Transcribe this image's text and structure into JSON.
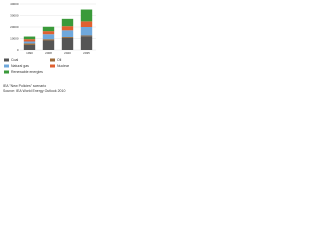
{
  "chart_data": {
    "type": "stacked_bar",
    "categories": [
      "1990",
      "2008",
      "2020",
      "2035"
    ],
    "series": [
      {
        "name": "Coal",
        "color": "#555555",
        "values": [
          4400,
          8300,
          10500,
          12000
        ]
      },
      {
        "name": "Oil",
        "color": "#9a6a3a",
        "values": [
          1300,
          1100,
          800,
          600
        ]
      },
      {
        "name": "Natural gas",
        "color": "#6fa8dc",
        "values": [
          1700,
          4300,
          5800,
          7400
        ]
      },
      {
        "name": "Nuclear",
        "color": "#e06030",
        "values": [
          2000,
          2700,
          3600,
          4900
        ]
      },
      {
        "name": "Renewable energies",
        "color": "#3a9a3a",
        "values": [
          2300,
          3800,
          6400,
          10300
        ]
      }
    ],
    "ylim": [
      0,
      40000
    ],
    "yticks": [
      0,
      10000,
      20000,
      30000,
      40000
    ],
    "grid": true,
    "annotations": [
      "IEA \"New Policies\" scenario",
      "Source: IEA World Energy Outlook 2010"
    ]
  }
}
